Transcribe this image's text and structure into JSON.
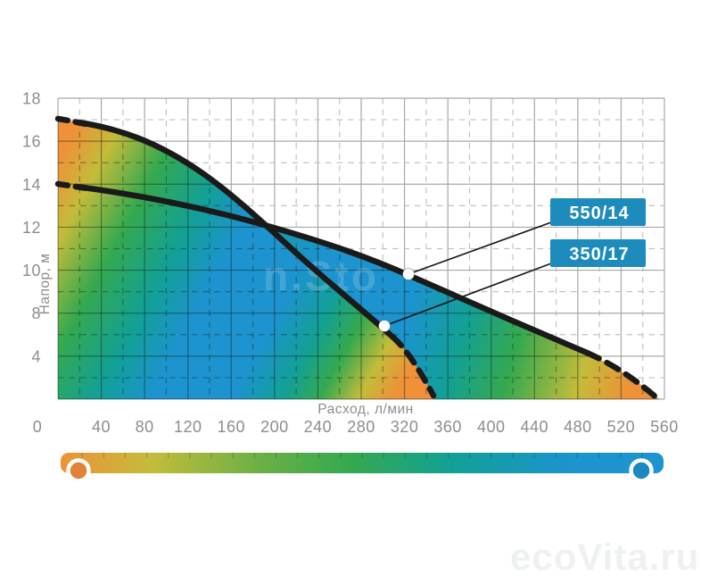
{
  "chart": {
    "y_axis": {
      "title": "Напор, м",
      "tick_labels": [
        "18",
        "16",
        "14",
        "12",
        "10",
        "8",
        "4"
      ]
    },
    "x_axis": {
      "title": "Расход, л/мин",
      "tick_labels": [
        "0",
        "40",
        "80",
        "120",
        "160",
        "200",
        "240",
        "280",
        "320",
        "360",
        "400",
        "440",
        "480",
        "520",
        "560"
      ]
    },
    "annotations": {
      "series_550": "550/14",
      "series_350": "350/17"
    },
    "watermark_plot": "n.Sto",
    "watermark_site": "ecoVita.ru"
  },
  "colors": {
    "orange": "#ef9138",
    "yellow_green": "#c3bc3a",
    "green": "#35a94f",
    "teal": "#12a096",
    "blue": "#1d93cf",
    "box_blue": "#1d8cbd",
    "curve_black": "#1a1a1a",
    "legend_circle_orange": "#e1823b",
    "legend_circle_blue": "#1d87c2",
    "grid_gray": "#a8a8a8",
    "text_gray": "#8d8d8d"
  },
  "chart_data": {
    "type": "line",
    "title": "",
    "xlabel": "Расход, л/мин",
    "ylabel": "Напор, м",
    "xlim": [
      0,
      560
    ],
    "ylim": [
      0,
      18
    ],
    "x_tick_labels": [
      0,
      40,
      80,
      120,
      160,
      200,
      240,
      280,
      320,
      360,
      400,
      440,
      480,
      520,
      560
    ],
    "y_tick_labels": [
      18,
      16,
      14,
      12,
      10,
      8,
      4,
      0
    ],
    "grid": "major solid + minor dashed",
    "legend_position": "bottom gradient bar (orange = low flow pump end, blue = high flow pump end)",
    "series": [
      {
        "name": "350/17",
        "style": "thick black, dashed at both ends, area under curve filled with orange-green-blue-green-orange gradient",
        "points": [
          [
            0,
            17
          ],
          [
            70,
            16.3
          ],
          [
            145,
            14
          ],
          [
            190,
            12.2
          ],
          [
            250,
            9.6
          ],
          [
            300,
            7.3
          ],
          [
            350,
            0
          ]
        ]
      },
      {
        "name": "550/14",
        "style": "thick black, dashed at both ends, area under curve filled with orange-green-blue-green-orange gradient",
        "points": [
          [
            0,
            14
          ],
          [
            80,
            13.4
          ],
          [
            160,
            12.5
          ],
          [
            190,
            12.1
          ],
          [
            260,
            10.9
          ],
          [
            325,
            9.8
          ],
          [
            400,
            8.2
          ],
          [
            475,
            6.5
          ],
          [
            550,
            0
          ]
        ]
      }
    ],
    "annotations": [
      {
        "label": "550/14",
        "marker": "white dot",
        "at_flow": 325,
        "at_head": 9.8
      },
      {
        "label": "350/17",
        "marker": "white dot",
        "at_flow": 300,
        "at_head": 7.3
      }
    ]
  }
}
